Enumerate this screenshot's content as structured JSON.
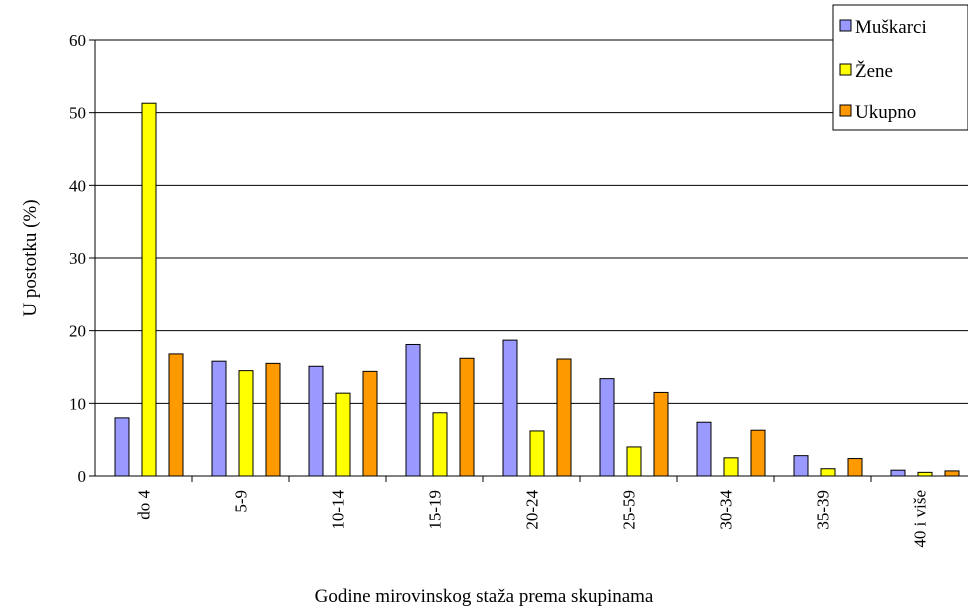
{
  "chart_data": {
    "type": "bar",
    "xlabel": "Godine mirovinskog staža prema skupinama",
    "ylabel": "U postotku (%)",
    "ylim": [
      0,
      60
    ],
    "yticks": [
      "0",
      "10",
      "20",
      "30",
      "40",
      "50",
      "60"
    ],
    "ytick_values": [
      0,
      10,
      20,
      30,
      40,
      50,
      60
    ],
    "grid": "horizontal",
    "legend_position": "top-right",
    "categories": [
      "do 4",
      "5-9",
      "10-14",
      "15-19",
      "20-24",
      "25-59",
      "30-34",
      "35-39",
      "40 i više"
    ],
    "series": [
      {
        "name": "Muškarci",
        "color": "#9999ff",
        "values": [
          8.0,
          15.8,
          15.1,
          18.1,
          18.7,
          13.4,
          7.4,
          2.8,
          0.8
        ]
      },
      {
        "name": "Žene",
        "color": "#ffff00",
        "values": [
          51.3,
          14.5,
          11.4,
          8.7,
          6.2,
          4.0,
          2.5,
          1.0,
          0.5
        ]
      },
      {
        "name": "Ukupno",
        "color": "#ff9900",
        "values": [
          16.8,
          15.5,
          14.4,
          16.2,
          16.1,
          11.5,
          6.3,
          2.4,
          0.7
        ]
      }
    ]
  }
}
